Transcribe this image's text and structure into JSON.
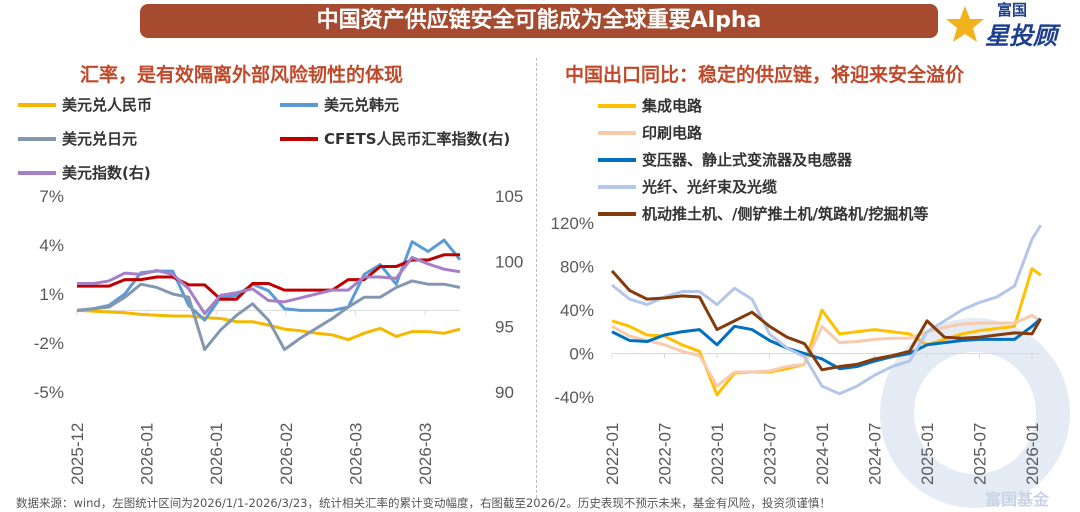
{
  "header": {
    "title": "中国资产供应链安全可能成为全球重要Alpha",
    "logo_small": "富国",
    "logo_big": "星投顾",
    "watermark": "富国基金"
  },
  "left": {
    "subtitle": "汇率，是有效隔离外部风险韧性的体现"
  },
  "right": {
    "subtitle": "中国出口同比：稳定的供应链，将迎来安全溢价"
  },
  "footer": "数据来源：wind，左图统计区间为2026/1/1-2026/3/23，统计相关汇率的累计变动幅度，右图截至2026/2。历史表现不预示未来，基金有风险，投资须谨慎！",
  "colors": {
    "banner": "#a64b2f",
    "subtitle": "#c0492b"
  },
  "chart_data": [
    {
      "type": "line",
      "x_tick_labels": [
        "2025-12",
        "2026-01",
        "2026-01",
        "2026-02",
        "2026-03",
        "2026-03"
      ],
      "y_left": {
        "ticks": [
          "7%",
          "4%",
          "1%",
          "-2%",
          "-5%"
        ],
        "range": [
          -5,
          7
        ]
      },
      "y_right": {
        "ticks": [
          "105",
          "100",
          "95",
          "90"
        ],
        "range": [
          90,
          105
        ]
      },
      "legend": "top",
      "series": [
        {
          "name": "美元兑人民币",
          "color": "#f5b800",
          "axis": "left",
          "values": [
            0,
            -0.05,
            -0.1,
            -0.15,
            -0.25,
            -0.3,
            -0.35,
            -0.35,
            -0.45,
            -0.5,
            -0.7,
            -0.7,
            -0.9,
            -1.15,
            -1.25,
            -1.4,
            -1.5,
            -1.8,
            -1.4,
            -1.1,
            -1.6,
            -1.3,
            -1.3,
            -1.4,
            -1.15
          ]
        },
        {
          "name": "美元兑韩元",
          "color": "#5b9bd5",
          "axis": "left",
          "values": [
            0,
            0.1,
            0.3,
            1.0,
            2.3,
            2.4,
            2.4,
            0.3,
            -0.6,
            0.8,
            0.9,
            1.6,
            1.2,
            0.1,
            0,
            0,
            0,
            0.2,
            2.2,
            2.8,
            1.6,
            4.2,
            3.6,
            4.3,
            3.1
          ]
        },
        {
          "name": "美元兑日元",
          "color": "#8497b0",
          "axis": "left",
          "values": [
            0,
            0.1,
            0.2,
            0.8,
            1.6,
            1.4,
            1.0,
            0.8,
            -2.4,
            -1.2,
            -0.3,
            0.4,
            -0.6,
            -2.4,
            -1.7,
            -1.1,
            -0.5,
            0.2,
            0.8,
            0.8,
            1.4,
            1.8,
            1.6,
            1.6,
            1.4
          ]
        },
        {
          "name": "CFETS人民币汇率指数(右)",
          "color": "#c00000",
          "axis": "right",
          "values": [
            98.1,
            98.1,
            98.1,
            98.6,
            98.6,
            98.8,
            98.8,
            98.2,
            98.2,
            97.1,
            97.1,
            98.3,
            98.3,
            97.8,
            97.8,
            97.8,
            97.8,
            98.6,
            98.6,
            99.6,
            99.6,
            100.1,
            100.1,
            100.5,
            100.5
          ]
        },
        {
          "name": "美元指数(右)",
          "color": "#a67fc9",
          "axis": "right",
          "values": [
            98.3,
            98.3,
            98.5,
            99.1,
            99.0,
            99.3,
            99.0,
            97.9,
            96.0,
            97.4,
            97.6,
            97.9,
            97.0,
            96.9,
            97.2,
            97.5,
            97.8,
            97.8,
            98.8,
            98.8,
            98.7,
            100.3,
            99.8,
            99.4,
            99.2
          ]
        }
      ]
    },
    {
      "type": "line",
      "x": [
        "2022-01",
        "2022-03",
        "2022-05",
        "2022-07",
        "2022-09",
        "2022-11",
        "2023-01",
        "2023-03",
        "2023-05",
        "2023-07",
        "2023-09",
        "2023-11",
        "2024-01",
        "2024-03",
        "2024-05",
        "2024-07",
        "2024-09",
        "2024-11",
        "2025-01",
        "2025-03",
        "2025-05",
        "2025-07",
        "2025-09",
        "2025-11",
        "2026-01",
        "2026-02"
      ],
      "x_tick_labels": [
        "2022-01",
        "2022-07",
        "2023-01",
        "2023-07",
        "2024-01",
        "2024-07",
        "2025-01",
        "2025-07",
        "2026-01"
      ],
      "y": {
        "ticks": [
          "120%",
          "80%",
          "40%",
          "0%",
          "-40%"
        ],
        "range": [
          -40,
          120
        ]
      },
      "legend": "top",
      "series": [
        {
          "name": "集成电路",
          "color": "#ffc000",
          "values": [
            30,
            25,
            17,
            16,
            8,
            2,
            -38,
            -18,
            -17,
            -17,
            -14,
            -10,
            40,
            18,
            20,
            22,
            20,
            18,
            8,
            13,
            18,
            21,
            23,
            25,
            78,
            72
          ]
        },
        {
          "name": "印刷电路",
          "color": "#f8cbad",
          "values": [
            25,
            16,
            12,
            8,
            2,
            -2,
            -30,
            -17,
            -17,
            -16,
            -12,
            -10,
            25,
            10,
            11,
            13,
            14,
            14,
            20,
            24,
            27,
            28,
            28,
            28,
            35,
            30
          ]
        },
        {
          "name": "变压器、静止式变流器及电感器",
          "color": "#0070c0",
          "values": [
            20,
            12,
            11,
            17,
            20,
            22,
            8,
            25,
            22,
            12,
            5,
            0,
            -5,
            -14,
            -12,
            -7,
            -3,
            0,
            8,
            10,
            12,
            13,
            13,
            13,
            25,
            32
          ]
        },
        {
          "name": "光纤、光纤束及光缆",
          "color": "#b4c7e7",
          "values": [
            63,
            50,
            45,
            52,
            57,
            57,
            45,
            60,
            50,
            18,
            5,
            -3,
            -30,
            -37,
            -30,
            -20,
            -12,
            -7,
            20,
            30,
            40,
            47,
            52,
            62,
            105,
            118
          ]
        },
        {
          "name": "机动推土机、/侧铲推土机/筑路机/挖掘机等",
          "color": "#843c0c",
          "values": [
            76,
            58,
            50,
            51,
            53,
            52,
            22,
            30,
            38,
            25,
            15,
            9,
            -15,
            -12,
            -10,
            -5,
            -2,
            2,
            30,
            15,
            14,
            15,
            17,
            19,
            18,
            32
          ]
        }
      ]
    }
  ]
}
